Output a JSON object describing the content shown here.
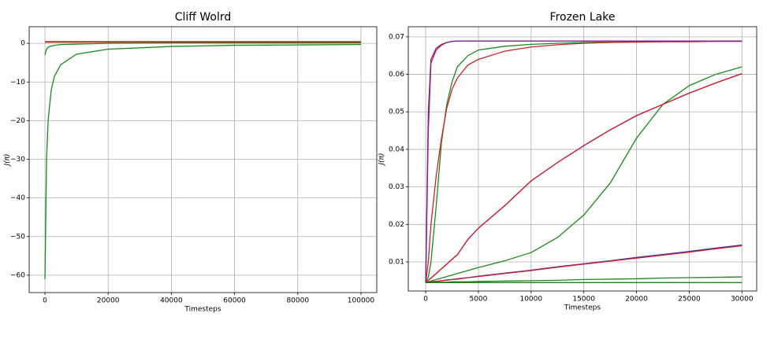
{
  "chart_data": [
    {
      "type": "line",
      "title": "Cliff Wolrd",
      "xlabel": "Timesteps",
      "ylabel": "J(π)",
      "grid": true,
      "x": [
        0,
        500,
        1000,
        2000,
        3000,
        5000,
        10000,
        20000,
        40000,
        60000,
        80000,
        100000
      ],
      "xlim": [
        -5000,
        105000
      ],
      "xticks": [
        0,
        20000,
        40000,
        60000,
        80000,
        100000
      ],
      "ylim": [
        -64.5,
        4.3
      ],
      "yticks": [
        {
          "value": -60,
          "label": "−60"
        },
        {
          "value": -50,
          "label": "−50"
        },
        {
          "value": -40,
          "label": "−40"
        },
        {
          "value": -30,
          "label": "−30"
        },
        {
          "value": -20,
          "label": "−20"
        },
        {
          "value": -10,
          "label": "−10"
        },
        0
      ],
      "series": [
        {
          "color": "#1a8a1a",
          "values": [
            -61,
            -30,
            -20,
            -12,
            -8.5,
            -5.5,
            -2.8,
            -1.5,
            -0.8,
            -0.5,
            -0.4,
            -0.3
          ]
        },
        {
          "color": "#1a8a1a",
          "values": [
            -3,
            -1.5,
            -1,
            -0.7,
            -0.5,
            -0.3,
            -0.2,
            0,
            0.1,
            0.1,
            0.1,
            0.1
          ]
        },
        {
          "color": "#d0202a",
          "values": [
            0.3,
            0.3,
            0.3,
            0.3,
            0.3,
            0.3,
            0.3,
            0.3,
            0.3,
            0.3,
            0.3,
            0.3
          ]
        },
        {
          "color": "#8b4513",
          "values": [
            0.45,
            0.45,
            0.45,
            0.45,
            0.45,
            0.45,
            0.45,
            0.45,
            0.45,
            0.45,
            0.45,
            0.45
          ]
        }
      ]
    },
    {
      "type": "line",
      "title": "Frozen Lake",
      "xlabel": "Timesteps",
      "ylabel": "J(π)",
      "grid": true,
      "x": [
        0,
        250,
        500,
        1000,
        1500,
        2000,
        2500,
        3000,
        4000,
        5000,
        7500,
        10000,
        12500,
        15000,
        17500,
        20000,
        22500,
        25000,
        27500,
        30000
      ],
      "xlim": [
        -1650,
        31400
      ],
      "xticks": [
        0,
        5000,
        10000,
        15000,
        20000,
        25000,
        30000
      ],
      "ylim": [
        0.00224,
        0.0727
      ],
      "yticks": [
        0.01,
        0.02,
        0.03,
        0.04,
        0.05,
        0.06,
        0.07
      ],
      "series": [
        {
          "color": "#1a8a1a",
          "values": [
            0.0045,
            0.006,
            0.01,
            0.025,
            0.042,
            0.052,
            0.058,
            0.062,
            0.065,
            0.0665,
            0.0675,
            0.068,
            0.0683,
            0.0685,
            0.0686,
            0.0687,
            0.0688,
            0.0688,
            0.0689,
            0.0689
          ]
        },
        {
          "color": "#d0202a",
          "values": [
            0.0045,
            0.01,
            0.02,
            0.033,
            0.043,
            0.051,
            0.056,
            0.059,
            0.0625,
            0.064,
            0.0662,
            0.0673,
            0.0679,
            0.0683,
            0.0685,
            0.0686,
            0.0687,
            0.0687,
            0.0688,
            0.0688
          ]
        },
        {
          "color": "#d0202a",
          "values": [
            0.0045,
            0.045,
            0.063,
            0.0665,
            0.0678,
            0.0685,
            0.0688,
            0.0689,
            0.0689,
            0.0689,
            0.0689,
            0.0689,
            0.0689,
            0.0689,
            0.0689,
            0.0689,
            0.0689,
            0.0689,
            0.0689,
            0.0689
          ]
        },
        {
          "color": "#7a1f9a",
          "values": [
            0.0045,
            0.05,
            0.064,
            0.067,
            0.068,
            0.0685,
            0.0688,
            0.0689,
            0.0689,
            0.0689,
            0.0689,
            0.0689,
            0.0689,
            0.0689,
            0.0689,
            0.0689,
            0.0689,
            0.0689,
            0.0689,
            0.0689
          ]
        },
        {
          "color": "#1a8a1a",
          "values": [
            0.0045,
            0.0047,
            0.0049,
            0.0053,
            0.0057,
            0.0061,
            0.0065,
            0.0069,
            0.0077,
            0.0085,
            0.0103,
            0.0125,
            0.0165,
            0.0225,
            0.031,
            0.043,
            0.052,
            0.057,
            0.06,
            0.062
          ]
        },
        {
          "color": "#7a1f9a",
          "values": [
            0.0045,
            0.0051,
            0.0057,
            0.0069,
            0.0082,
            0.0094,
            0.0107,
            0.0119,
            0.016,
            0.019,
            0.025,
            0.0316,
            0.0365,
            0.041,
            0.0452,
            0.049,
            0.052,
            0.055,
            0.0577,
            0.0602
          ]
        },
        {
          "color": "#d0202a",
          "values": [
            0.0045,
            0.0051,
            0.0057,
            0.0069,
            0.0082,
            0.0094,
            0.0107,
            0.0119,
            0.016,
            0.019,
            0.025,
            0.0316,
            0.0365,
            0.041,
            0.0452,
            0.049,
            0.052,
            0.055,
            0.0577,
            0.0602
          ]
        },
        {
          "color": "#3030c0",
          "values": [
            0.0045,
            0.0046,
            0.0047,
            0.0048,
            0.005,
            0.0052,
            0.0053,
            0.0055,
            0.0058,
            0.0062,
            0.007,
            0.0078,
            0.0087,
            0.0095,
            0.0103,
            0.0112,
            0.012,
            0.0128,
            0.0137,
            0.0145
          ]
        },
        {
          "color": "#d0202a",
          "values": [
            0.0045,
            0.0046,
            0.0047,
            0.0048,
            0.005,
            0.0051,
            0.0053,
            0.0054,
            0.0058,
            0.0061,
            0.0069,
            0.0077,
            0.0086,
            0.0094,
            0.0102,
            0.011,
            0.0118,
            0.0126,
            0.0135,
            0.0143
          ]
        },
        {
          "color": "#1a8a1a",
          "values": [
            0.0045,
            0.0045,
            0.0045,
            0.0046,
            0.0046,
            0.0046,
            0.0047,
            0.0047,
            0.0047,
            0.0048,
            0.0049,
            0.005,
            0.0051,
            0.0053,
            0.0054,
            0.0055,
            0.0057,
            0.0058,
            0.0059,
            0.006
          ]
        },
        {
          "color": "#0f6a0f",
          "values": [
            0.0045,
            0.0045,
            0.0045,
            0.0045,
            0.0045,
            0.0045,
            0.0045,
            0.0045,
            0.0045,
            0.0045,
            0.0045,
            0.0045,
            0.0045,
            0.0045,
            0.0045,
            0.0045,
            0.0045,
            0.0045,
            0.0045,
            0.0045
          ]
        }
      ]
    }
  ]
}
